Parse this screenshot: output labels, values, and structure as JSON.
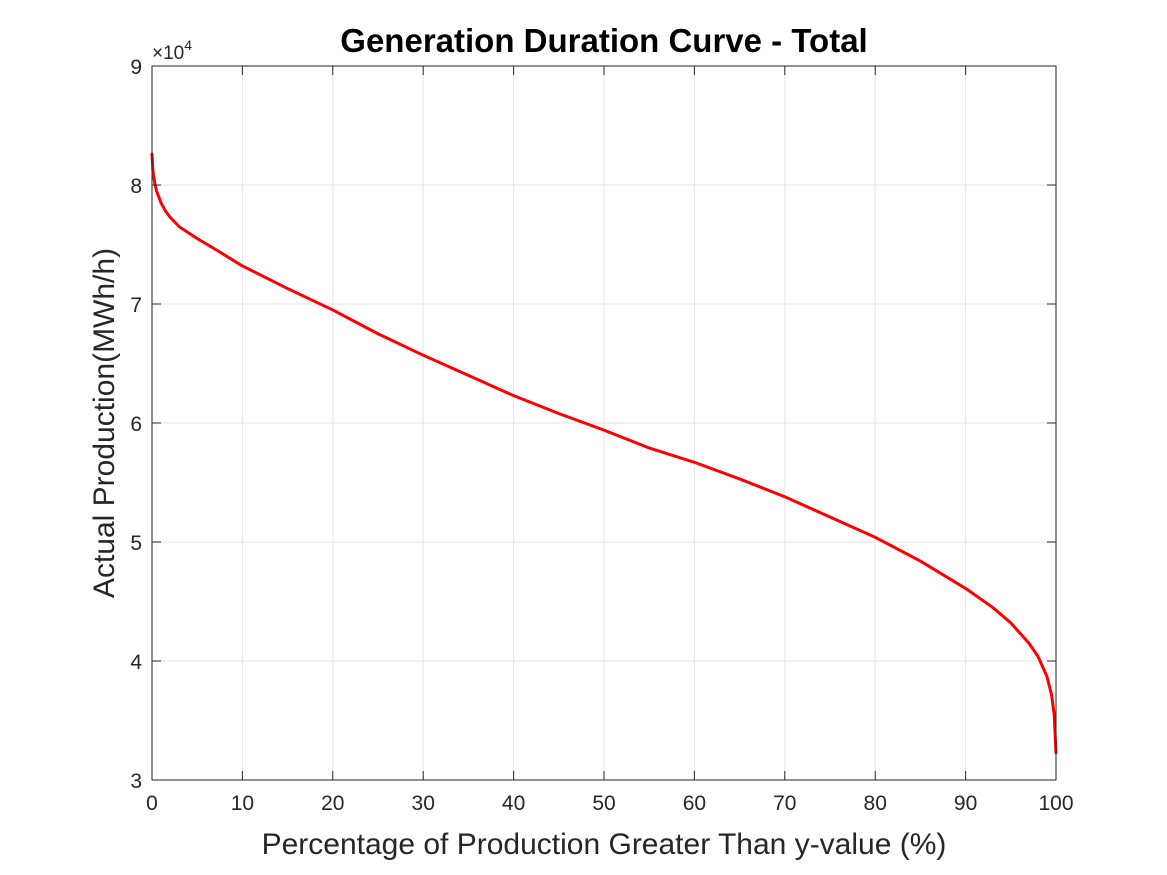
{
  "chart_data": {
    "type": "line",
    "title": "Generation Duration Curve - Total",
    "xlabel": "Percentage of Production Greater Than y-value (%)",
    "ylabel": "Actual Production(MWh/h)",
    "xlim": [
      0,
      100
    ],
    "ylim": [
      30000,
      90000
    ],
    "xticks": [
      0,
      10,
      20,
      30,
      40,
      50,
      60,
      70,
      80,
      90,
      100
    ],
    "yticks": [
      30000,
      40000,
      50000,
      60000,
      70000,
      80000,
      90000
    ],
    "ytick_labels": [
      "3",
      "4",
      "5",
      "6",
      "7",
      "8",
      "9"
    ],
    "y_exponent_label": "×10",
    "y_exponent_power": "4",
    "grid": true,
    "series": [
      {
        "color": "#ff0000",
        "x": [
          0,
          0.1,
          0.3,
          0.5,
          1,
          1.5,
          2,
          3,
          4,
          5,
          7,
          10,
          15,
          20,
          25,
          30,
          35,
          40,
          45,
          50,
          55,
          60,
          65,
          70,
          75,
          80,
          85,
          90,
          93,
          95,
          97,
          98,
          99,
          99.5,
          99.8,
          100
        ],
        "y": [
          82600,
          81200,
          80200,
          79500,
          78500,
          77800,
          77300,
          76500,
          76000,
          75500,
          74600,
          73200,
          71300,
          69500,
          67500,
          65700,
          64000,
          62300,
          60800,
          59400,
          57900,
          56700,
          55300,
          53800,
          52100,
          50400,
          48400,
          46100,
          44500,
          43200,
          41500,
          40400,
          38700,
          37200,
          35500,
          32300
        ]
      }
    ]
  }
}
